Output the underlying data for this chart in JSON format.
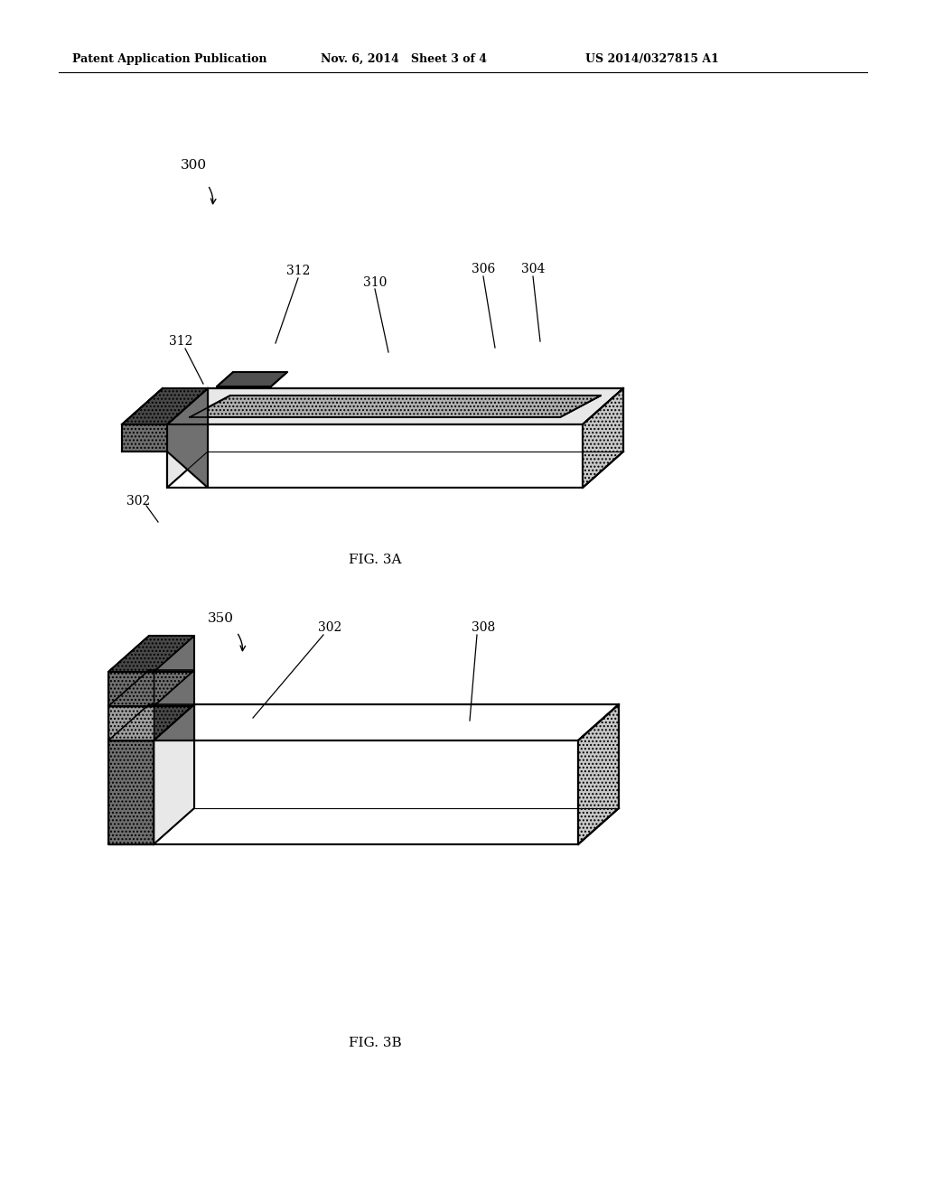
{
  "bg_color": "#ffffff",
  "line_color": "#000000",
  "header_left": "Patent Application Publication",
  "header_mid": "Nov. 6, 2014   Sheet 3 of 4",
  "header_right": "US 2014/0327815 A1",
  "fig_label_a": "FIG. 3A",
  "fig_label_b": "FIG. 3B",
  "label_300": "300",
  "label_302a": "302",
  "label_302b": "302",
  "label_304": "304",
  "label_306": "306",
  "label_308": "308",
  "label_310": "310",
  "label_312a": "312",
  "label_312b": "312",
  "label_350": "350",
  "color_white": "#ffffff",
  "color_light": "#e8e8e8",
  "color_mid_light": "#c8c8c8",
  "color_mid": "#a0a0a0",
  "color_dark": "#707070",
  "color_very_dark": "#484848",
  "color_screen": "#b0b0b0",
  "color_lens": "#505050"
}
